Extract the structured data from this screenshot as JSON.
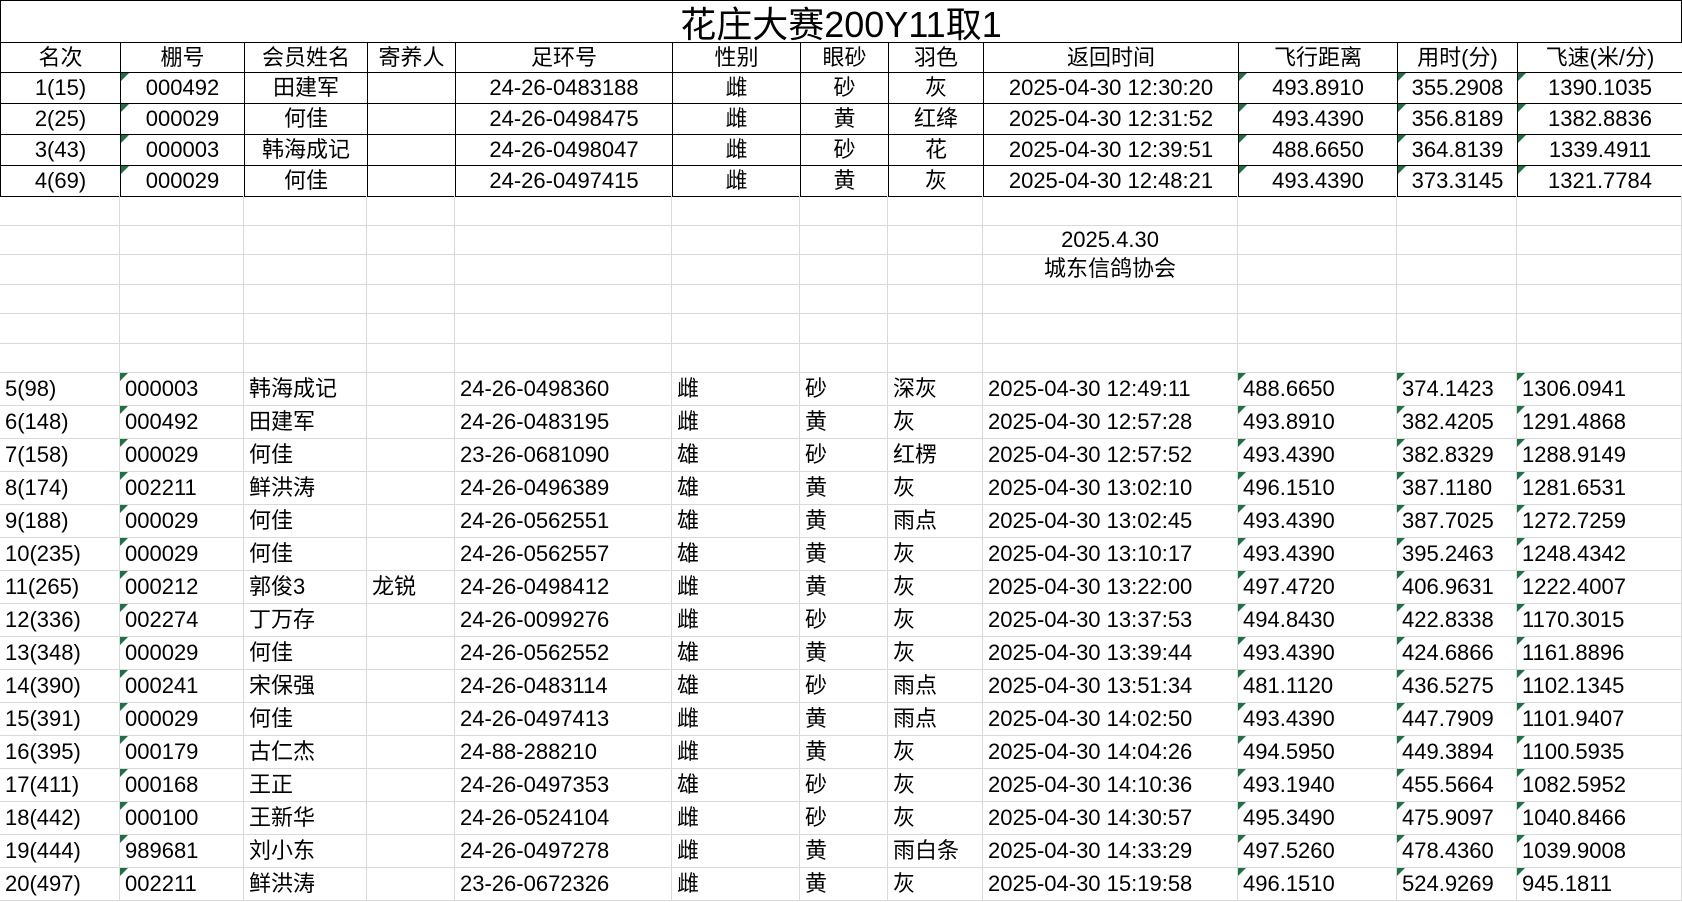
{
  "title": "花庄大赛200Y11取1",
  "columns": [
    "名次",
    "棚号",
    "会员姓名",
    "寄养人",
    "足环号",
    "性别",
    "眼砂",
    "羽色",
    "返回时间",
    "飞行距离",
    "用时(分)",
    "飞速(米/分)"
  ],
  "top_rows": [
    [
      "1(15)",
      "000492",
      "田建军",
      "",
      "24-26-0483188",
      "雌",
      "砂",
      "灰",
      "2025-04-30 12:30:20",
      "493.8910",
      "355.2908",
      "1390.1035"
    ],
    [
      "2(25)",
      "000029",
      "何佳",
      "",
      "24-26-0498475",
      "雌",
      "黄",
      "红绛",
      "2025-04-30 12:31:52",
      "493.4390",
      "356.8189",
      "1382.8836"
    ],
    [
      "3(43)",
      "000003",
      "韩海成记",
      "",
      "24-26-0498047",
      "雌",
      "砂",
      "花",
      "2025-04-30 12:39:51",
      "488.6650",
      "364.8139",
      "1339.4911"
    ],
    [
      "4(69)",
      "000029",
      "何佳",
      "",
      "24-26-0497415",
      "雌",
      "黄",
      "灰",
      "2025-04-30 12:48:21",
      "493.4390",
      "373.3145",
      "1321.7784"
    ]
  ],
  "middle_notes": {
    "date": "2025.4.30",
    "org": "城东信鸽协会"
  },
  "bottom_rows": [
    [
      "5(98)",
      "000003",
      "韩海成记",
      "",
      "24-26-0498360",
      "雌",
      "砂",
      "深灰",
      "2025-04-30 12:49:11",
      "488.6650",
      "374.1423",
      "1306.0941"
    ],
    [
      "6(148)",
      "000492",
      "田建军",
      "",
      "24-26-0483195",
      "雌",
      "黄",
      "灰",
      "2025-04-30 12:57:28",
      "493.8910",
      "382.4205",
      "1291.4868"
    ],
    [
      "7(158)",
      "000029",
      "何佳",
      "",
      "23-26-0681090",
      "雄",
      "砂",
      "红楞",
      "2025-04-30 12:57:52",
      "493.4390",
      "382.8329",
      "1288.9149"
    ],
    [
      "8(174)",
      "002211",
      "鲜洪涛",
      "",
      "24-26-0496389",
      "雄",
      "黄",
      "灰",
      "2025-04-30 13:02:10",
      "496.1510",
      "387.1180",
      "1281.6531"
    ],
    [
      "9(188)",
      "000029",
      "何佳",
      "",
      "24-26-0562551",
      "雄",
      "黄",
      "雨点",
      "2025-04-30 13:02:45",
      "493.4390",
      "387.7025",
      "1272.7259"
    ],
    [
      "10(235)",
      "000029",
      "何佳",
      "",
      "24-26-0562557",
      "雄",
      "黄",
      "灰",
      "2025-04-30 13:10:17",
      "493.4390",
      "395.2463",
      "1248.4342"
    ],
    [
      "11(265)",
      "000212",
      "郭俊3",
      "龙锐",
      "24-26-0498412",
      "雌",
      "黄",
      "灰",
      "2025-04-30 13:22:00",
      "497.4720",
      "406.9631",
      "1222.4007"
    ],
    [
      "12(336)",
      "002274",
      "丁万存",
      "",
      "24-26-0099276",
      "雌",
      "砂",
      "灰",
      "2025-04-30 13:37:53",
      "494.8430",
      "422.8338",
      "1170.3015"
    ],
    [
      "13(348)",
      "000029",
      "何佳",
      "",
      "24-26-0562552",
      "雄",
      "黄",
      "灰",
      "2025-04-30 13:39:44",
      "493.4390",
      "424.6866",
      "1161.8896"
    ],
    [
      "14(390)",
      "000241",
      "宋保强",
      "",
      "24-26-0483114",
      "雄",
      "砂",
      "雨点",
      "2025-04-30 13:51:34",
      "481.1120",
      "436.5275",
      "1102.1345"
    ],
    [
      "15(391)",
      "000029",
      "何佳",
      "",
      "24-26-0497413",
      "雌",
      "黄",
      "雨点",
      "2025-04-30 14:02:50",
      "493.4390",
      "447.7909",
      "1101.9407"
    ],
    [
      "16(395)",
      "000179",
      "古仁杰",
      "",
      "24-88-288210",
      "雌",
      "黄",
      "灰",
      "2025-04-30 14:04:26",
      "494.5950",
      "449.3894",
      "1100.5935"
    ],
    [
      "17(411)",
      "000168",
      "王正",
      "",
      "24-26-0497353",
      "雄",
      "砂",
      "灰",
      "2025-04-30 14:10:36",
      "493.1940",
      "455.5664",
      "1082.5952"
    ],
    [
      "18(442)",
      "000100",
      "王新华",
      "",
      "24-26-0524104",
      "雌",
      "砂",
      "灰",
      "2025-04-30 14:30:57",
      "495.3490",
      "475.9097",
      "1040.8466"
    ],
    [
      "19(444)",
      "989681",
      "刘小东",
      "",
      "24-26-0497278",
      "雌",
      "黄",
      "雨白条",
      "2025-04-30 14:33:29",
      "497.5260",
      "478.4360",
      "1039.9008"
    ],
    [
      "20(497)",
      "002211",
      "鲜洪涛",
      "",
      "23-26-0672326",
      "雌",
      "黄",
      "灰",
      "2025-04-30 15:19:58",
      "496.1510",
      "524.9269",
      "945.1811"
    ]
  ],
  "flag_marker_columns": [
    1,
    9,
    10,
    11
  ],
  "colors": {
    "flag_green": "#1e7145",
    "table_border": "#000000",
    "gridline": "#d9d9d9"
  }
}
